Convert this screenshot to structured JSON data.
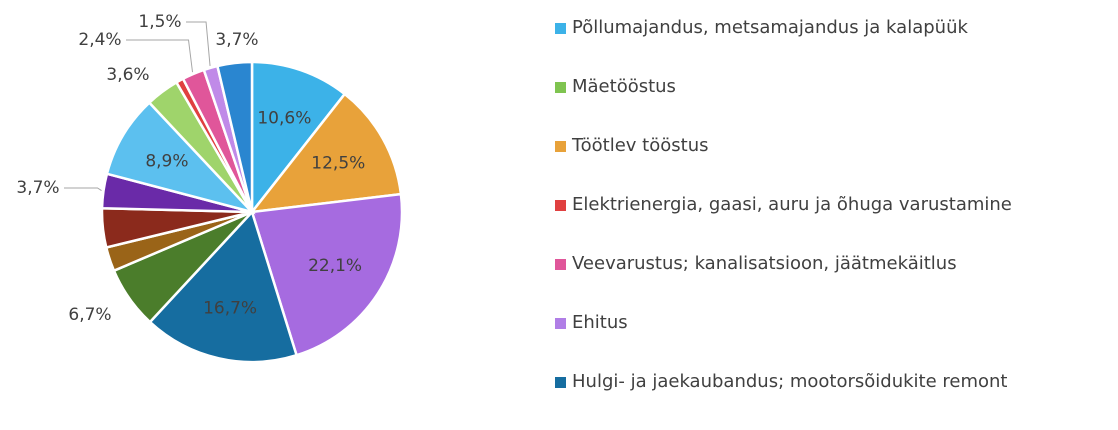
{
  "chart_data": {
    "type": "pie",
    "values": [
      10.6,
      12.5,
      22.1,
      16.7,
      6.7,
      2.6,
      4.2,
      3.7,
      8.9,
      3.6,
      0.8,
      2.4,
      1.5,
      3.7
    ],
    "value_labels": [
      "10,6%",
      "12,5%",
      "22,1%",
      "16,7%",
      "6,7%",
      null,
      null,
      "3,7%",
      "8,9%",
      "3,6%",
      null,
      "2,4%",
      "1,5%",
      "3,7%"
    ],
    "colors": [
      "#3cb2e8",
      "#e8a23a",
      "#a66be0",
      "#166da0",
      "#4b7d2b",
      "#9a6418",
      "#8b2a1c",
      "#6a2aa8",
      "#5cc0ef",
      "#9fd46b",
      "#e04040",
      "#e0569a",
      "#c08ae8",
      "#2a86d0"
    ],
    "legend": [
      {
        "name": "Põllumajandus, metsamajandus ja kalapüük",
        "color": "#3cb2e8"
      },
      {
        "name": "Mäetööstus",
        "color": "#7fc450"
      },
      {
        "name": "Töötlev tööstus",
        "color": "#e8a23a"
      },
      {
        "name": "Elektrienergia, gaasi, auru ja õhuga varustamine",
        "color": "#e04040"
      },
      {
        "name": "Veevarustus; kanalisatsioon, jäätmekäitlus",
        "color": "#e0569a"
      },
      {
        "name": "Ehitus",
        "color": "#b07ee6"
      },
      {
        "name": "Hulgi- ja jaekaubandus; mootorsõidukite remont",
        "color": "#166da0"
      }
    ]
  }
}
